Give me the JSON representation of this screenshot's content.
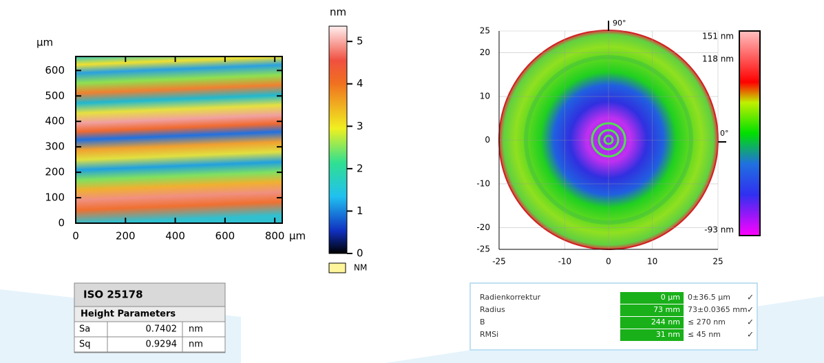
{
  "left_map": {
    "y_unit": "µm",
    "x_unit": "µm",
    "xlim": [
      0,
      830
    ],
    "ylim": [
      0,
      655
    ],
    "xticks": [
      0,
      200,
      400,
      600,
      800
    ],
    "yticks": [
      0,
      100,
      200,
      300,
      400,
      500,
      600
    ]
  },
  "left_colorbar": {
    "unit": "nm",
    "lim": [
      0,
      5.36
    ],
    "ticks": [
      0,
      1,
      2,
      3,
      4,
      5
    ],
    "legend": "NM"
  },
  "left_table": {
    "title": "ISO 25178",
    "section": "Height Parameters",
    "rows": [
      [
        "Sa",
        0.7402,
        "nm"
      ],
      [
        "Sq",
        0.9294,
        "nm"
      ]
    ]
  },
  "right_map": {
    "xlim": [
      -25,
      25
    ],
    "ylim": [
      -25,
      25
    ],
    "xticks": [
      -25,
      -10,
      0,
      10,
      25
    ],
    "yticks": [
      -25,
      -20,
      -10,
      0,
      10,
      20,
      25
    ],
    "angle_top": "90°",
    "angle_right": "0°"
  },
  "right_colorbar": {
    "max_label": "151 nm",
    "upper_label": "118 nm",
    "min_label": "-93 nm"
  },
  "right_table": {
    "rows": [
      [
        "Radienkorrektur",
        "0 µm",
        "0±36.5 µm",
        "✓"
      ],
      [
        "Radius",
        "73 mm",
        "73±0.0365 mm",
        "✓"
      ],
      [
        "B",
        "244 nm",
        "≤ 270 nm",
        "✓"
      ],
      [
        "RMSi",
        "31 nm",
        "≤ 45 nm",
        "✓"
      ]
    ]
  }
}
